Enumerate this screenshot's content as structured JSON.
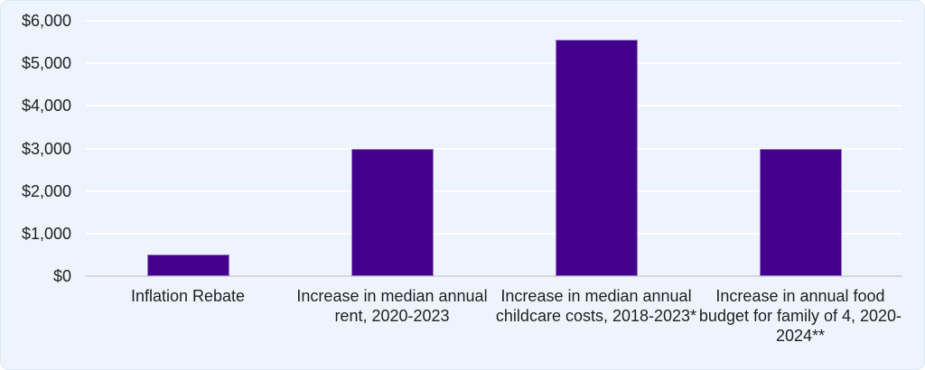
{
  "chart_data": {
    "type": "bar",
    "categories": [
      "Inflation Rebate",
      "Increase in median annual rent, 2020-2023",
      "Increase in median annual childcare costs, 2018-2023*",
      "Increase in annual food budget for family of 4, 2020-2024**"
    ],
    "values": [
      500,
      3000,
      5550,
      3000
    ],
    "title": "",
    "xlabel": "",
    "ylabel": "",
    "ylim": [
      0,
      6000
    ],
    "ytick_interval": 1000,
    "ytick_labels": [
      "$0",
      "$1,000",
      "$2,000",
      "$3,000",
      "$4,000",
      "$5,000",
      "$6,000"
    ],
    "grid": true,
    "legend": false,
    "colors": {
      "bar_fill": "#42008C",
      "bar_border": "#9B7EC3",
      "background": "#EDF4FD",
      "gridline": "#FFFFFF",
      "axis_line": "#D9D9D9",
      "text": "#1F1F1F"
    }
  }
}
